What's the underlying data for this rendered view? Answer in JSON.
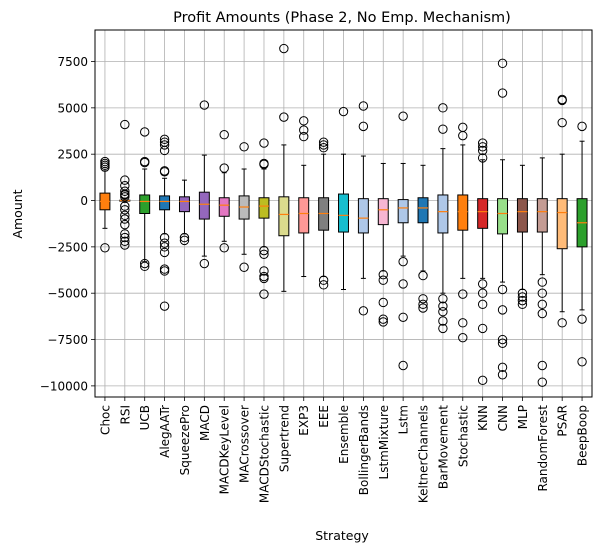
{
  "chart_data": {
    "type": "box",
    "title": "Profit Amounts (Phase 2, No Emp. Mechanism)",
    "xlabel": "Strategy",
    "ylabel": "Amount",
    "ylim": [
      -10600,
      9200
    ],
    "yticks": [
      -10000,
      -7500,
      -5000,
      -2500,
      0,
      2500,
      5000,
      7500
    ],
    "ytick_labels": [
      "−10000",
      "−7500",
      "−5000",
      "−2500",
      "0",
      "2500",
      "5000",
      "7500"
    ],
    "grid": true,
    "median_color": "#ff7f0e",
    "categories": [
      "Choc",
      "RSI",
      "UCB",
      "AlegAATr",
      "SqueezePro",
      "MACD",
      "MACDKeyLevel",
      "MACrossover",
      "MACDStochastic",
      "Supertrend",
      "EXP3",
      "EEE",
      "Ensemble",
      "BollingerBands",
      "LstmMixture",
      "Lstm",
      "KeltnerChannels",
      "BarMovement",
      "Stochastic",
      "KNN",
      "CNN",
      "MLP",
      "RandomForest",
      "PSAR",
      "BeepBoop"
    ],
    "boxes": [
      {
        "name": "Choc",
        "color": "#ff7f0e",
        "whislo": -1500,
        "q1": -500,
        "med": -50,
        "q3": 400,
        "whishi": 1600,
        "fliers": [
          1800,
          1900,
          2000,
          2100,
          -2550
        ]
      },
      {
        "name": "RSI",
        "color": "#ff7f0e",
        "whislo": -100,
        "q1": -20,
        "med": 0,
        "q3": 20,
        "whishi": 100,
        "fliers": [
          4100,
          1100,
          800,
          500,
          350,
          300,
          200,
          -300,
          -500,
          -800,
          -1000,
          -1300,
          -1800,
          -2000,
          -2200,
          -2400
        ]
      },
      {
        "name": "UCB",
        "color": "#2ca02c",
        "whislo": -3300,
        "q1": -700,
        "med": -50,
        "q3": 300,
        "whishi": 1700,
        "fliers": [
          3700,
          2100,
          2050,
          -3400,
          -3550
        ]
      },
      {
        "name": "AlegAATr",
        "color": "#1f77b4",
        "whislo": -1800,
        "q1": -500,
        "med": -50,
        "q3": 250,
        "whishi": 1200,
        "fliers": [
          3300,
          3150,
          3000,
          2700,
          1600,
          1550,
          -2000,
          -2300,
          -2500,
          -2800,
          -3700,
          -3800,
          -5700
        ]
      },
      {
        "name": "SqueezePro",
        "color": "#9467bd",
        "whislo": -1800,
        "q1": -600,
        "med": -50,
        "q3": 200,
        "whishi": 1100,
        "fliers": [
          -2000,
          -2150
        ]
      },
      {
        "name": "MACD",
        "color": "#9467bd",
        "whislo": -3000,
        "q1": -1000,
        "med": -200,
        "q3": 450,
        "whishi": 2450,
        "fliers": [
          5150,
          -3400
        ]
      },
      {
        "name": "MACDKeyLevel",
        "color": "#e377c2",
        "whislo": -2200,
        "q1": -850,
        "med": -250,
        "q3": 150,
        "whishi": 1500,
        "fliers": [
          3550,
          1750,
          -2550
        ]
      },
      {
        "name": "MACrossover",
        "color": "#bbbbbb",
        "whislo": -2900,
        "q1": -1000,
        "med": -350,
        "q3": 250,
        "whishi": 1700,
        "fliers": [
          2900,
          -3600
        ]
      },
      {
        "name": "MACDStochastic",
        "color": "#bcbd22",
        "whislo": -2500,
        "q1": -950,
        "med": -300,
        "q3": 150,
        "whishi": 1700,
        "fliers": [
          3100,
          2000,
          1950,
          -2700,
          -2900,
          -3800,
          -4100,
          -4200,
          -5050
        ]
      },
      {
        "name": "Supertrend",
        "color": "#dbdb8d",
        "whislo": -4900,
        "q1": -1900,
        "med": -750,
        "q3": 200,
        "whishi": 3000,
        "fliers": [
          8200,
          4500
        ]
      },
      {
        "name": "EXP3",
        "color": "#ff9896",
        "whislo": -4100,
        "q1": -1750,
        "med": -700,
        "q3": 150,
        "whishi": 1900,
        "fliers": [
          4300,
          3800,
          3450
        ]
      },
      {
        "name": "EEE",
        "color": "#7f7f7f",
        "whislo": -4100,
        "q1": -1600,
        "med": -700,
        "q3": 150,
        "whishi": 2500,
        "fliers": [
          3150,
          3000,
          2850,
          -4300,
          -4550
        ]
      },
      {
        "name": "Ensemble",
        "color": "#17becf",
        "whislo": -4800,
        "q1": -1700,
        "med": -800,
        "q3": 350,
        "whishi": 2500,
        "fliers": [
          4800
        ]
      },
      {
        "name": "BollingerBands",
        "color": "#aec7e8",
        "whislo": -4200,
        "q1": -1750,
        "med": -950,
        "q3": 100,
        "whishi": 2400,
        "fliers": [
          5100,
          4000,
          -5950
        ]
      },
      {
        "name": "LstmMixture",
        "color": "#f7b6d2",
        "whislo": -3800,
        "q1": -1300,
        "med": -500,
        "q3": 100,
        "whishi": 2000,
        "fliers": [
          -4000,
          -4300,
          -5500,
          -6400,
          -6550
        ]
      },
      {
        "name": "Lstm",
        "color": "#aec7e8",
        "whislo": -3000,
        "q1": -1200,
        "med": -400,
        "q3": 50,
        "whishi": 2000,
        "fliers": [
          4550,
          -3300,
          -4500,
          -6300,
          -8900
        ]
      },
      {
        "name": "KeltnerChannels",
        "color": "#1f77b4",
        "whislo": -3800,
        "q1": -1200,
        "med": -400,
        "q3": 150,
        "whishi": 1900,
        "fliers": [
          -4050,
          -5300,
          -5600,
          -5800
        ]
      },
      {
        "name": "BarMovement",
        "color": "#aec7e8",
        "whislo": -5000,
        "q1": -1750,
        "med": -600,
        "q3": 300,
        "whishi": 2800,
        "fliers": [
          5000,
          3850,
          -5300,
          -5700,
          -6000,
          -6500,
          -6900
        ]
      },
      {
        "name": "Stochastic",
        "color": "#ff7f0e",
        "whislo": -4200,
        "q1": -1600,
        "med": -600,
        "q3": 300,
        "whishi": 3000,
        "fliers": [
          3950,
          3500,
          -5050,
          -6600,
          -7400
        ]
      },
      {
        "name": "KNN",
        "color": "#d62728",
        "whislo": -4200,
        "q1": -1500,
        "med": -600,
        "q3": 100,
        "whishi": 2200,
        "fliers": [
          3100,
          2900,
          2700,
          2300,
          -4500,
          -5000,
          -5600,
          -6900,
          -9700
        ]
      },
      {
        "name": "CNN",
        "color": "#98df8a",
        "whislo": -4400,
        "q1": -1800,
        "med": -700,
        "q3": 100,
        "whishi": 2200,
        "fliers": [
          7400,
          5800,
          -4800,
          -5900,
          -7500,
          -7700,
          -9000,
          -9400
        ]
      },
      {
        "name": "MLP",
        "color": "#8c564b",
        "whislo": -4800,
        "q1": -1700,
        "med": -600,
        "q3": 100,
        "whishi": 1900,
        "fliers": [
          -5000,
          -5200,
          -5400,
          -5600
        ]
      },
      {
        "name": "RandomForest",
        "color": "#c49c94",
        "whislo": -4000,
        "q1": -1700,
        "med": -600,
        "q3": 100,
        "whishi": 2300,
        "fliers": [
          -4400,
          -5000,
          -5600,
          -6100,
          -8900,
          -9800
        ]
      },
      {
        "name": "PSAR",
        "color": "#ffbb78",
        "whislo": -6000,
        "q1": -2600,
        "med": -650,
        "q3": 100,
        "whishi": 2500,
        "fliers": [
          5450,
          5400,
          4200,
          -6600
        ]
      },
      {
        "name": "BeepBoop",
        "color": "#2ca02c",
        "whislo": -5900,
        "q1": -2500,
        "med": -1200,
        "q3": 100,
        "whishi": 3200,
        "fliers": [
          4000,
          -6400,
          -8700
        ]
      }
    ]
  }
}
